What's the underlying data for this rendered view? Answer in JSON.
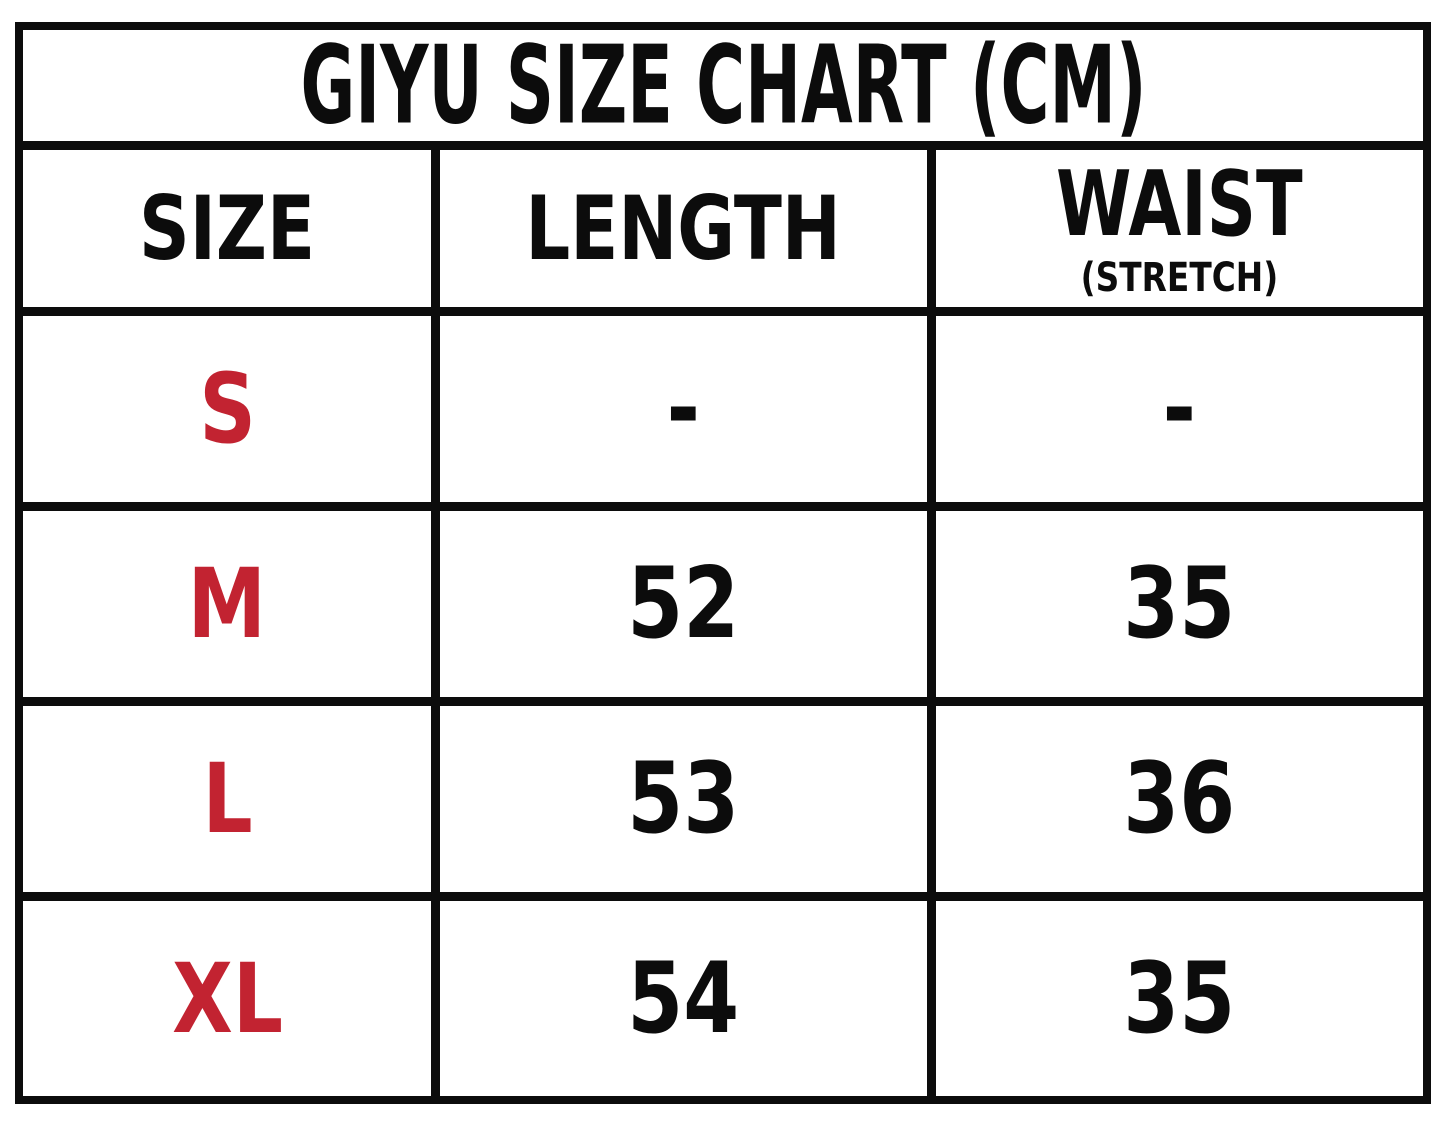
{
  "title": "GIYU SIZE CHART (CM)",
  "headers": {
    "size": "SIZE",
    "length": "LENGTH",
    "waist": "WAIST",
    "waist_note": "(STRETCH)"
  },
  "rows": [
    {
      "size": "S",
      "length": "-",
      "waist": "-"
    },
    {
      "size": "M",
      "length": "52",
      "waist": "35"
    },
    {
      "size": "L",
      "length": "53",
      "waist": "36"
    },
    {
      "size": "XL",
      "length": "54",
      "waist": "35"
    }
  ],
  "colors": {
    "size_label": "#c22331",
    "text": "#0c0c0c",
    "border": "#0c0c0c",
    "background": "#ffffff"
  },
  "units": "cm"
}
